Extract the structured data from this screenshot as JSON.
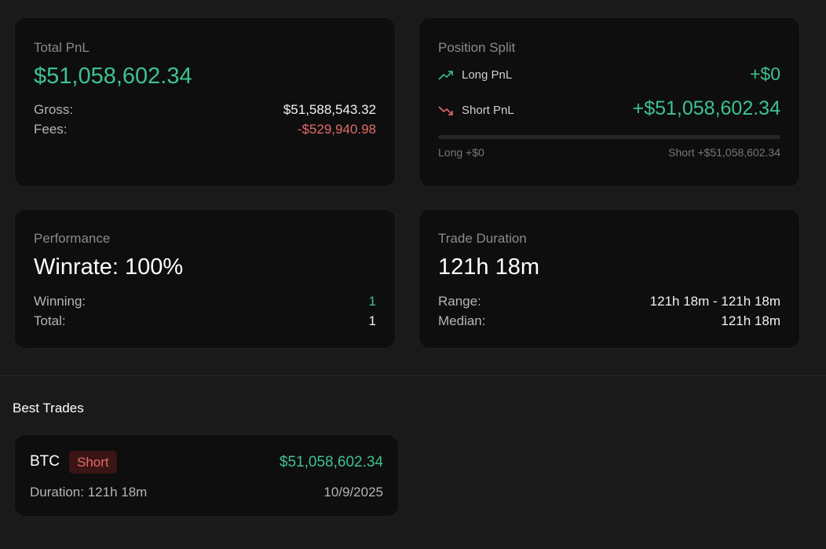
{
  "total_pnl": {
    "label": "Total PnL",
    "value": "$51,058,602.34",
    "gross_label": "Gross:",
    "gross_value": "$51,588,543.32",
    "fees_label": "Fees:",
    "fees_value": "-$529,940.98"
  },
  "position_split": {
    "label": "Position Split",
    "long_label": "Long PnL",
    "long_value": "+$0",
    "short_label": "Short PnL",
    "short_value": "+$51,058,602.34",
    "bar_long_label": "Long +$0",
    "bar_short_label": "Short +$51,058,602.34",
    "long_fraction": 0.0,
    "icons": {
      "long": "trending-up-icon",
      "short": "trending-down-icon"
    }
  },
  "performance": {
    "label": "Performance",
    "headline": "Winrate: 100%",
    "winning_label": "Winning:",
    "winning_value": "1",
    "total_label": "Total:",
    "total_value": "1"
  },
  "trade_duration": {
    "label": "Trade Duration",
    "headline": "121h 18m",
    "range_label": "Range:",
    "range_value": "121h 18m - 121h 18m",
    "median_label": "Median:",
    "median_value": "121h 18m"
  },
  "best_trades": {
    "title": "Best Trades",
    "items": [
      {
        "symbol": "BTC",
        "side": "Short",
        "pnl": "$51,058,602.34",
        "duration": "Duration: 121h 18m",
        "date": "10/9/2025"
      }
    ]
  },
  "colors": {
    "background": "#1a1a1a",
    "card": "#0e0e0e",
    "green": "#3ec28f",
    "red": "#e46b6b",
    "badge_bg": "#3b1414"
  }
}
